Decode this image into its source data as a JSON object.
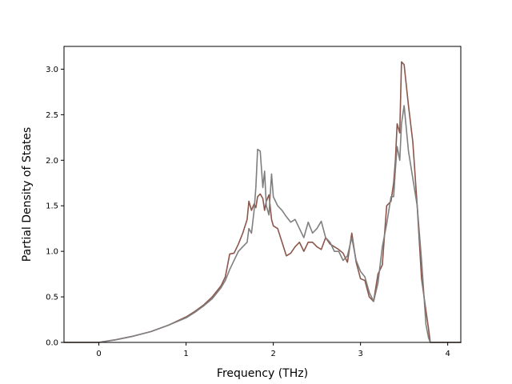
{
  "chart_data": {
    "type": "line",
    "title": "",
    "xlabel": "Frequency (THz)",
    "ylabel": "Partial Density of States",
    "xlim": [
      -0.4,
      4.15
    ],
    "ylim": [
      0.0,
      3.25
    ],
    "x_ticks": [
      0,
      1,
      2,
      3,
      4
    ],
    "y_ticks": [
      0.0,
      0.5,
      1.0,
      1.5,
      2.0,
      2.5,
      3.0
    ],
    "x_tick_labels": [
      "0",
      "1",
      "2",
      "3",
      "4"
    ],
    "y_tick_labels": [
      "0.0",
      "0.5",
      "1.0",
      "1.5",
      "2.0",
      "2.5",
      "3.0"
    ],
    "grid": false,
    "legend": "none",
    "series": [
      {
        "color": "#8c564b",
        "x": [
          -0.4,
          0.0,
          0.2,
          0.4,
          0.6,
          0.8,
          1.0,
          1.1,
          1.2,
          1.3,
          1.4,
          1.45,
          1.5,
          1.55,
          1.6,
          1.65,
          1.7,
          1.72,
          1.75,
          1.78,
          1.8,
          1.82,
          1.85,
          1.88,
          1.9,
          1.92,
          1.95,
          1.98,
          2.0,
          2.05,
          2.1,
          2.15,
          2.2,
          2.25,
          2.3,
          2.35,
          2.4,
          2.45,
          2.5,
          2.55,
          2.6,
          2.65,
          2.7,
          2.75,
          2.8,
          2.85,
          2.9,
          2.95,
          3.0,
          3.05,
          3.1,
          3.15,
          3.2,
          3.25,
          3.3,
          3.35,
          3.38,
          3.4,
          3.42,
          3.45,
          3.47,
          3.5,
          3.55,
          3.6,
          3.65,
          3.7,
          3.75,
          3.78,
          3.8,
          4.15
        ],
        "y": [
          0.0,
          0.0,
          0.03,
          0.07,
          0.12,
          0.19,
          0.28,
          0.34,
          0.41,
          0.5,
          0.62,
          0.72,
          0.97,
          0.98,
          1.08,
          1.2,
          1.35,
          1.55,
          1.45,
          1.52,
          1.48,
          1.6,
          1.63,
          1.58,
          1.45,
          1.55,
          1.62,
          1.35,
          1.28,
          1.25,
          1.1,
          0.95,
          0.98,
          1.05,
          1.1,
          1.0,
          1.1,
          1.1,
          1.05,
          1.02,
          1.15,
          1.08,
          1.05,
          1.02,
          0.98,
          0.88,
          1.2,
          0.88,
          0.7,
          0.68,
          0.5,
          0.45,
          0.75,
          0.85,
          1.5,
          1.55,
          1.75,
          2.0,
          2.4,
          2.3,
          3.08,
          3.05,
          2.6,
          2.2,
          1.5,
          0.7,
          0.35,
          0.15,
          0.0,
          0.0
        ]
      },
      {
        "color": "#7f7f7f",
        "x": [
          -0.4,
          0.0,
          0.2,
          0.4,
          0.6,
          0.8,
          1.0,
          1.1,
          1.2,
          1.3,
          1.4,
          1.45,
          1.5,
          1.55,
          1.6,
          1.65,
          1.7,
          1.72,
          1.75,
          1.78,
          1.8,
          1.82,
          1.85,
          1.88,
          1.9,
          1.92,
          1.95,
          1.98,
          2.0,
          2.05,
          2.1,
          2.15,
          2.2,
          2.25,
          2.3,
          2.35,
          2.4,
          2.45,
          2.5,
          2.55,
          2.6,
          2.65,
          2.7,
          2.75,
          2.8,
          2.85,
          2.9,
          2.95,
          3.0,
          3.05,
          3.1,
          3.15,
          3.2,
          3.25,
          3.3,
          3.35,
          3.38,
          3.4,
          3.42,
          3.45,
          3.47,
          3.5,
          3.55,
          3.6,
          3.65,
          3.7,
          3.75,
          3.78,
          3.8,
          4.15
        ],
        "y": [
          0.0,
          0.0,
          0.03,
          0.07,
          0.12,
          0.19,
          0.27,
          0.33,
          0.4,
          0.48,
          0.6,
          0.68,
          0.8,
          0.9,
          1.0,
          1.05,
          1.1,
          1.25,
          1.2,
          1.45,
          1.7,
          2.12,
          2.1,
          1.7,
          1.88,
          1.5,
          1.4,
          1.85,
          1.6,
          1.5,
          1.45,
          1.38,
          1.32,
          1.35,
          1.25,
          1.15,
          1.32,
          1.2,
          1.25,
          1.33,
          1.15,
          1.1,
          1.0,
          1.0,
          0.9,
          0.95,
          1.15,
          0.9,
          0.78,
          0.72,
          0.55,
          0.45,
          0.65,
          1.05,
          1.3,
          1.6,
          1.6,
          1.9,
          2.15,
          2.0,
          2.4,
          2.6,
          2.1,
          1.8,
          1.5,
          0.9,
          0.2,
          0.05,
          0.0,
          0.0
        ]
      }
    ]
  }
}
